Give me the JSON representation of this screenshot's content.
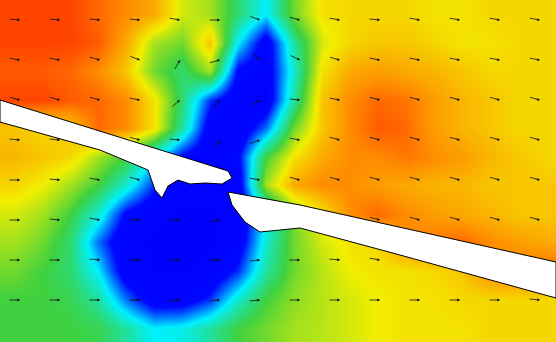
{
  "chart_data": {
    "type": "heatmap",
    "tick_labels": false,
    "grid": false,
    "xlim": [
      0,
      556
    ],
    "ylim": [
      342,
      0
    ],
    "zlim": [
      0,
      1
    ],
    "x": [
      14,
      42,
      70,
      98,
      126,
      154,
      182,
      210,
      238,
      266,
      294,
      322,
      350,
      378,
      406,
      434,
      462,
      490,
      518,
      546
    ],
    "y": [
      14,
      42.5,
      71,
      99.5,
      128,
      156.5,
      185,
      213.5,
      242,
      270.5,
      299,
      327.5
    ],
    "z": [
      [
        0.95,
        0.95,
        0.95,
        0.9,
        0.85,
        0.8,
        0.65,
        0.6,
        0.45,
        0.3,
        0.55,
        0.7,
        0.72,
        0.72,
        0.72,
        0.7,
        0.7,
        0.72,
        0.72,
        0.72
      ],
      [
        0.95,
        0.95,
        0.95,
        0.92,
        0.8,
        0.6,
        0.55,
        0.75,
        0.3,
        0.05,
        0.4,
        0.65,
        0.72,
        0.75,
        0.75,
        0.72,
        0.7,
        0.7,
        0.72,
        0.72
      ],
      [
        0.92,
        0.92,
        0.9,
        0.85,
        0.75,
        0.55,
        0.45,
        0.6,
        0.1,
        0.05,
        0.35,
        0.7,
        0.8,
        0.82,
        0.8,
        0.78,
        0.75,
        0.72,
        0.72,
        0.72
      ],
      [
        0.95,
        0.95,
        0.92,
        0.9,
        0.85,
        0.7,
        0.45,
        0.15,
        0.02,
        0.03,
        0.4,
        0.75,
        0.85,
        0.9,
        0.88,
        0.82,
        0.78,
        0.75,
        0.72,
        0.72
      ],
      [
        0.75,
        0.72,
        0.75,
        0.9,
        0.85,
        0.7,
        0.4,
        0.05,
        0.02,
        0.2,
        0.55,
        0.75,
        0.85,
        0.92,
        0.9,
        0.82,
        0.78,
        0.75,
        0.72,
        0.72
      ],
      [
        0.78,
        0.75,
        0.72,
        0.6,
        0.5,
        0.3,
        0.1,
        0.02,
        0.1,
        0.5,
        0.7,
        0.8,
        0.85,
        0.85,
        0.88,
        0.85,
        0.82,
        0.78,
        0.75,
        0.72
      ],
      [
        0.72,
        0.68,
        0.6,
        0.5,
        0.35,
        0.15,
        0.02,
        0.02,
        0.05,
        0.6,
        0.8,
        0.85,
        0.85,
        0.82,
        0.8,
        0.78,
        0.78,
        0.75,
        0.75,
        0.75
      ],
      [
        0.65,
        0.6,
        0.5,
        0.35,
        0.1,
        0.02,
        0.0,
        0.0,
        0.02,
        0.3,
        0.55,
        0.7,
        0.85,
        0.9,
        0.85,
        0.82,
        0.8,
        0.78,
        0.75,
        0.75
      ],
      [
        0.6,
        0.55,
        0.45,
        0.2,
        0.02,
        0.0,
        0.0,
        0.0,
        0.05,
        0.35,
        0.55,
        0.65,
        0.7,
        0.72,
        0.85,
        0.88,
        0.9,
        0.85,
        0.82,
        0.8
      ],
      [
        0.55,
        0.5,
        0.45,
        0.3,
        0.05,
        0.0,
        0.0,
        0.02,
        0.15,
        0.4,
        0.55,
        0.62,
        0.68,
        0.7,
        0.7,
        0.72,
        0.75,
        0.85,
        0.88,
        0.9
      ],
      [
        0.5,
        0.5,
        0.48,
        0.4,
        0.2,
        0.05,
        0.05,
        0.15,
        0.35,
        0.5,
        0.58,
        0.62,
        0.65,
        0.68,
        0.7,
        0.7,
        0.72,
        0.72,
        0.72,
        0.72
      ],
      [
        0.5,
        0.5,
        0.5,
        0.48,
        0.4,
        0.3,
        0.32,
        0.4,
        0.5,
        0.55,
        0.6,
        0.62,
        0.65,
        0.68,
        0.7,
        0.7,
        0.7,
        0.72,
        0.72,
        0.72
      ]
    ],
    "land": [
      {
        "x": [
          0,
          228,
          232,
          222,
          205,
          190,
          178,
          168,
          162,
          155,
          148,
          100,
          0
        ],
        "y": [
          100,
          171,
          178,
          184,
          183,
          184,
          180,
          186,
          198,
          190,
          170,
          150,
          122
        ]
      },
      {
        "x": [
          228,
          300,
          556,
          556,
          400,
          300,
          260,
          245,
          232
        ],
        "y": [
          192,
          205,
          262,
          298,
          255,
          228,
          232,
          222,
          205
        ]
      }
    ],
    "vectors": [
      [
        20,
        20,
        -5
      ],
      [
        60,
        20,
        -5
      ],
      [
        100,
        20,
        -5
      ],
      [
        140,
        20,
        -5
      ],
      [
        180,
        20,
        -10
      ],
      [
        220,
        20,
        0
      ],
      [
        260,
        20,
        -20
      ],
      [
        300,
        20,
        -15
      ],
      [
        340,
        20,
        -10
      ],
      [
        380,
        20,
        -5
      ],
      [
        420,
        20,
        -10
      ],
      [
        460,
        20,
        -10
      ],
      [
        500,
        20,
        -10
      ],
      [
        540,
        20,
        -10
      ],
      [
        20,
        60,
        -10
      ],
      [
        60,
        60,
        -10
      ],
      [
        100,
        60,
        -15
      ],
      [
        140,
        60,
        -20
      ],
      [
        180,
        60,
        60
      ],
      [
        220,
        60,
        15
      ],
      [
        260,
        60,
        -40
      ],
      [
        300,
        60,
        -25
      ],
      [
        340,
        60,
        -15
      ],
      [
        380,
        60,
        -10
      ],
      [
        420,
        60,
        -10
      ],
      [
        460,
        60,
        -10
      ],
      [
        500,
        60,
        -10
      ],
      [
        540,
        60,
        -10
      ],
      [
        20,
        100,
        -15
      ],
      [
        60,
        100,
        -15
      ],
      [
        100,
        100,
        -15
      ],
      [
        140,
        100,
        -10
      ],
      [
        180,
        100,
        40
      ],
      [
        220,
        100,
        50
      ],
      [
        260,
        100,
        30
      ],
      [
        300,
        100,
        -5
      ],
      [
        340,
        100,
        -10
      ],
      [
        380,
        100,
        -15
      ],
      [
        420,
        100,
        -15
      ],
      [
        460,
        100,
        -15
      ],
      [
        500,
        100,
        -15
      ],
      [
        540,
        100,
        -15
      ],
      [
        20,
        140,
        -5
      ],
      [
        60,
        140,
        -5
      ],
      [
        140,
        140,
        -15
      ],
      [
        180,
        140,
        -5
      ],
      [
        220,
        140,
        60
      ],
      [
        260,
        140,
        20
      ],
      [
        300,
        140,
        -10
      ],
      [
        340,
        140,
        -15
      ],
      [
        380,
        140,
        -15
      ],
      [
        420,
        140,
        -15
      ],
      [
        460,
        140,
        -15
      ],
      [
        500,
        140,
        -15
      ],
      [
        540,
        140,
        -15
      ],
      [
        20,
        180,
        0
      ],
      [
        60,
        180,
        -5
      ],
      [
        100,
        180,
        -10
      ],
      [
        140,
        180,
        -15
      ],
      [
        260,
        180,
        -10
      ],
      [
        300,
        180,
        -15
      ],
      [
        340,
        180,
        -15
      ],
      [
        380,
        180,
        -15
      ],
      [
        420,
        180,
        -15
      ],
      [
        460,
        180,
        -15
      ],
      [
        500,
        180,
        -15
      ],
      [
        540,
        180,
        -15
      ],
      [
        20,
        220,
        0
      ],
      [
        60,
        220,
        -5
      ],
      [
        100,
        220,
        -10
      ],
      [
        140,
        220,
        -5
      ],
      [
        180,
        220,
        0
      ],
      [
        220,
        220,
        10
      ],
      [
        380,
        220,
        -15
      ],
      [
        420,
        220,
        -15
      ],
      [
        460,
        220,
        -15
      ],
      [
        500,
        220,
        -15
      ],
      [
        540,
        220,
        -15
      ],
      [
        20,
        260,
        0
      ],
      [
        60,
        260,
        0
      ],
      [
        100,
        260,
        -5
      ],
      [
        140,
        260,
        0
      ],
      [
        180,
        260,
        0
      ],
      [
        220,
        260,
        0
      ],
      [
        260,
        260,
        5
      ],
      [
        300,
        260,
        0
      ],
      [
        340,
        260,
        -5
      ],
      [
        380,
        260,
        -10
      ],
      [
        20,
        300,
        0
      ],
      [
        60,
        300,
        0
      ],
      [
        100,
        300,
        0
      ],
      [
        140,
        300,
        0
      ],
      [
        180,
        300,
        5
      ],
      [
        220,
        300,
        5
      ],
      [
        260,
        300,
        5
      ],
      [
        300,
        300,
        0
      ],
      [
        340,
        300,
        0
      ],
      [
        380,
        300,
        0
      ],
      [
        420,
        300,
        0
      ],
      [
        460,
        300,
        0
      ],
      [
        500,
        300,
        0
      ],
      [
        540,
        300,
        -5
      ]
    ]
  }
}
